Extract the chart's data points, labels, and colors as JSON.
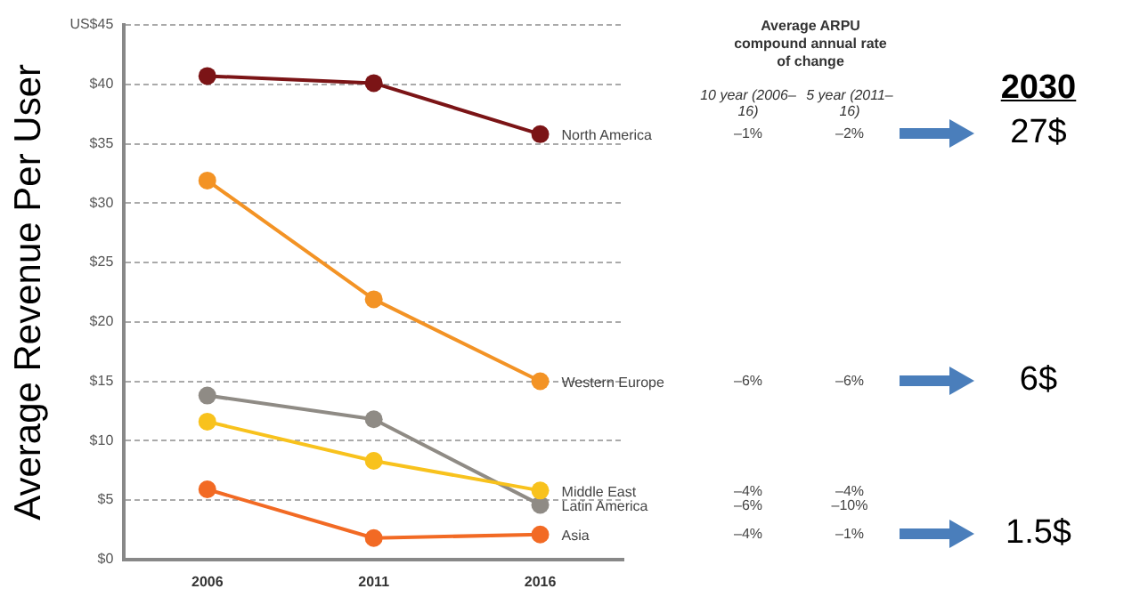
{
  "chart_data": {
    "type": "line",
    "ylabel": "Average Revenue Per User",
    "categories": [
      "2006",
      "2011",
      "2016"
    ],
    "series": [
      {
        "name": "North America",
        "color": "#7b1416",
        "values": [
          40.7,
          40.1,
          35.8
        ]
      },
      {
        "name": "Western Europe",
        "color": "#f39325",
        "values": [
          31.9,
          21.9,
          15.0
        ]
      },
      {
        "name": "Middle East",
        "color": "#f8c21d",
        "values": [
          11.6,
          8.3,
          5.8
        ]
      },
      {
        "name": "Latin America",
        "color": "#8f8b85",
        "values": [
          13.8,
          11.8,
          4.6
        ]
      },
      {
        "name": "Asia",
        "color": "#f26a24",
        "values": [
          5.9,
          1.8,
          2.1
        ]
      }
    ],
    "ylim": [
      0,
      45
    ],
    "yticks": [
      {
        "value": 0,
        "label": "$0"
      },
      {
        "value": 5,
        "label": "$5"
      },
      {
        "value": 10,
        "label": "$10"
      },
      {
        "value": 15,
        "label": "$15"
      },
      {
        "value": 20,
        "label": "$20"
      },
      {
        "value": 25,
        "label": "$25"
      },
      {
        "value": 30,
        "label": "$30"
      },
      {
        "value": 35,
        "label": "$35"
      },
      {
        "value": 40,
        "label": "$40"
      },
      {
        "value": 45,
        "label": "US$45"
      }
    ],
    "grid": "y",
    "marker": "circle",
    "line_style": "solid",
    "legend": false,
    "annotations": [
      "Average ARPU compound annual rate of change",
      "10 year (2006–16)",
      "5 year (2011–16)",
      "–1%",
      "–2%",
      "–6%",
      "–6%",
      "–4%",
      "–4%",
      "–6%",
      "–10%",
      "–4%",
      "–1%",
      "2030",
      "27$",
      "6$",
      "1.5$"
    ]
  }
}
